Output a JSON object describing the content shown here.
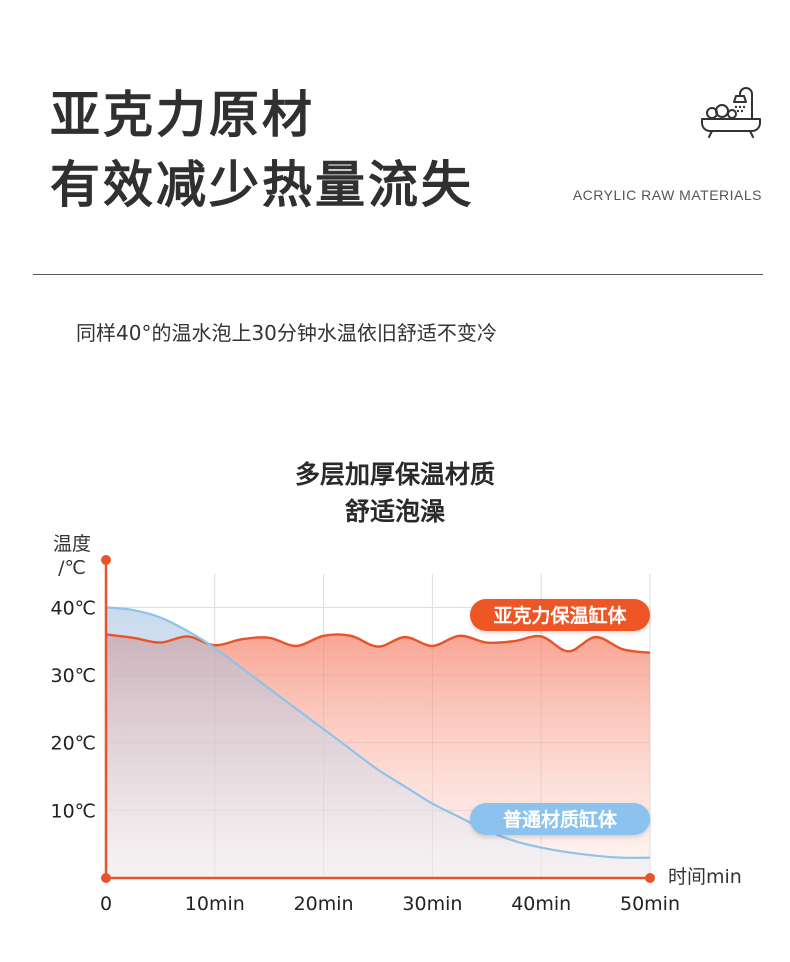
{
  "header": {
    "title_line1": "亚克力原材",
    "title_line2": "有效减少热量流失",
    "subtitle_en": "ACRYLIC RAW MATERIALS",
    "icon": "bathtub-shower-icon"
  },
  "description": "同样40°的温水泡上30分钟水温依旧舒适不变冷",
  "chart_data": {
    "type": "area",
    "title": "多层加厚保温材质",
    "subtitle": "舒适泡澡",
    "ylabel_line1": "温度",
    "ylabel_line2": "/℃",
    "xlabel": "时间min",
    "x_ticks": [
      "0",
      "10min",
      "20min",
      "30min",
      "40min",
      "50min"
    ],
    "y_ticks": [
      "10℃",
      "20℃",
      "30℃",
      "40℃"
    ],
    "x_tick_values": [
      0,
      10,
      20,
      30,
      40,
      50
    ],
    "y_tick_values": [
      10,
      20,
      30,
      40
    ],
    "xlim": [
      0,
      50
    ],
    "ylim": [
      0,
      47
    ],
    "grid": true,
    "series": [
      {
        "name": "亚克力保温缸体",
        "color": "#e8542a",
        "x": [
          0,
          2.5,
          5,
          7.5,
          10,
          12.5,
          15,
          17.5,
          20,
          22.5,
          25,
          27.5,
          30,
          32.5,
          35,
          37.5,
          40,
          42.5,
          45,
          47.5,
          50
        ],
        "values": [
          36,
          35.5,
          34.8,
          35.7,
          34.4,
          35.3,
          35.5,
          34.3,
          35.8,
          35.8,
          34.2,
          35.6,
          34.3,
          35.8,
          34.8,
          35.0,
          35.7,
          33.5,
          35.6,
          33.8,
          33.3
        ]
      },
      {
        "name": "普通材质缸体",
        "color": "#8ec3ea",
        "x": [
          0,
          2.5,
          5,
          7.5,
          10,
          12.5,
          15,
          17.5,
          20,
          22.5,
          25,
          27.5,
          30,
          32.5,
          35,
          37.5,
          40,
          42.5,
          45,
          47.5,
          50
        ],
        "values": [
          40,
          39.6,
          38.5,
          36.5,
          34,
          31,
          28,
          25,
          22,
          19,
          16,
          13.5,
          11,
          9,
          7,
          5.5,
          4.5,
          3.8,
          3.3,
          3,
          3
        ]
      }
    ],
    "colors": {
      "axis": "#e8542a",
      "grid": "#dddddd",
      "legend_acrylic_bg": "#ef5628",
      "legend_normal_bg": "#8cc2ee"
    }
  }
}
